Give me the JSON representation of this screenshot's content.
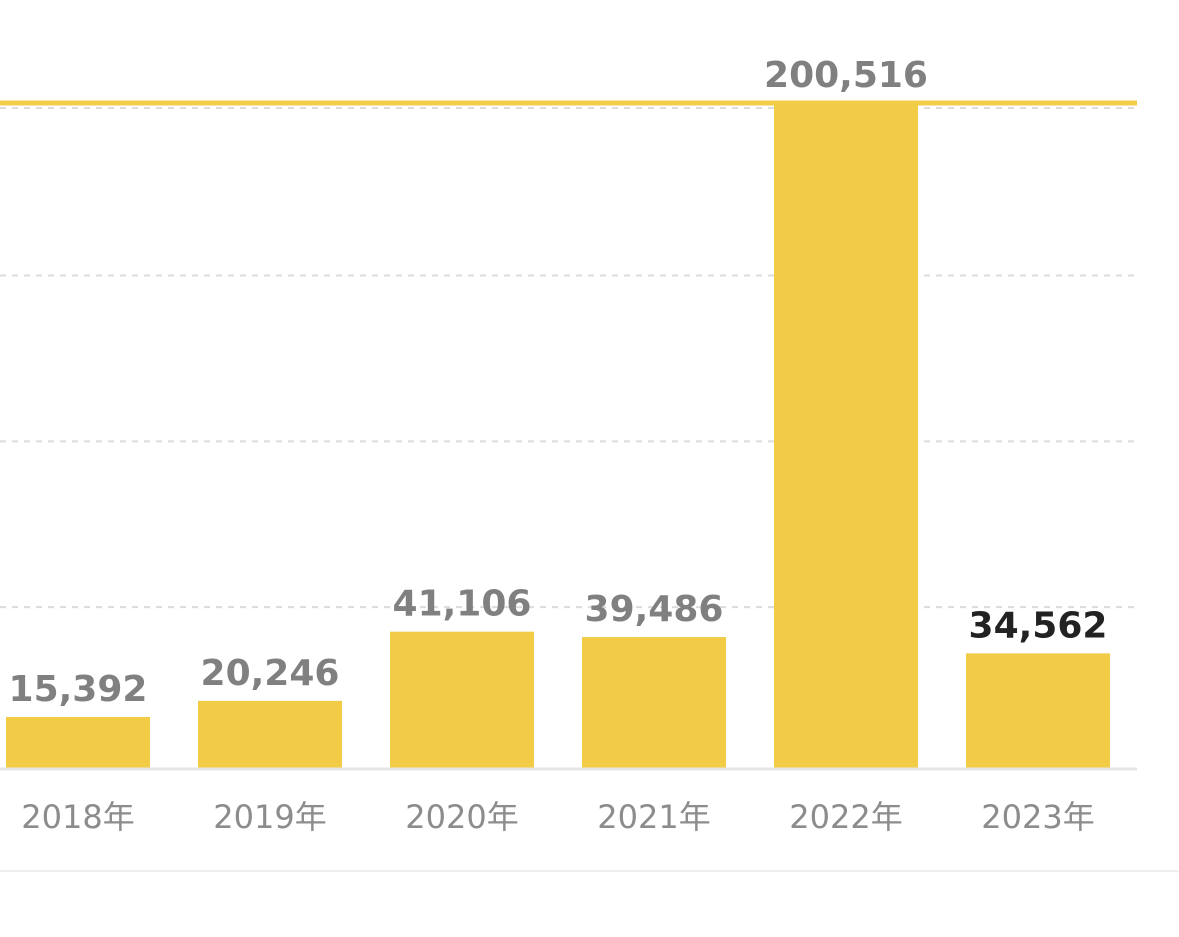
{
  "colors": {
    "bar": "#F2CC46",
    "max_line": "#F2CC46",
    "grid": "#dcdcdc",
    "axis": "#e6e6e6",
    "label": "#808080",
    "label_emphasis": "#222222",
    "tick": "#8c8c8c"
  },
  "chart_data": {
    "type": "bar",
    "title": "",
    "xlabel": "",
    "ylabel": "",
    "categories": [
      "2018年",
      "2019年",
      "2020年",
      "2021年",
      "2022年",
      "2023年"
    ],
    "values": [
      15392,
      20246,
      41106,
      39486,
      200516,
      34562
    ],
    "value_labels": [
      "15,392",
      "20,246",
      "41,106",
      "39,486",
      "200,516",
      "34,562"
    ],
    "highlighted_index": 5,
    "ylim": [
      0,
      200516
    ],
    "grid": true,
    "gridlines": [
      50000,
      100000,
      150000,
      200516
    ]
  }
}
